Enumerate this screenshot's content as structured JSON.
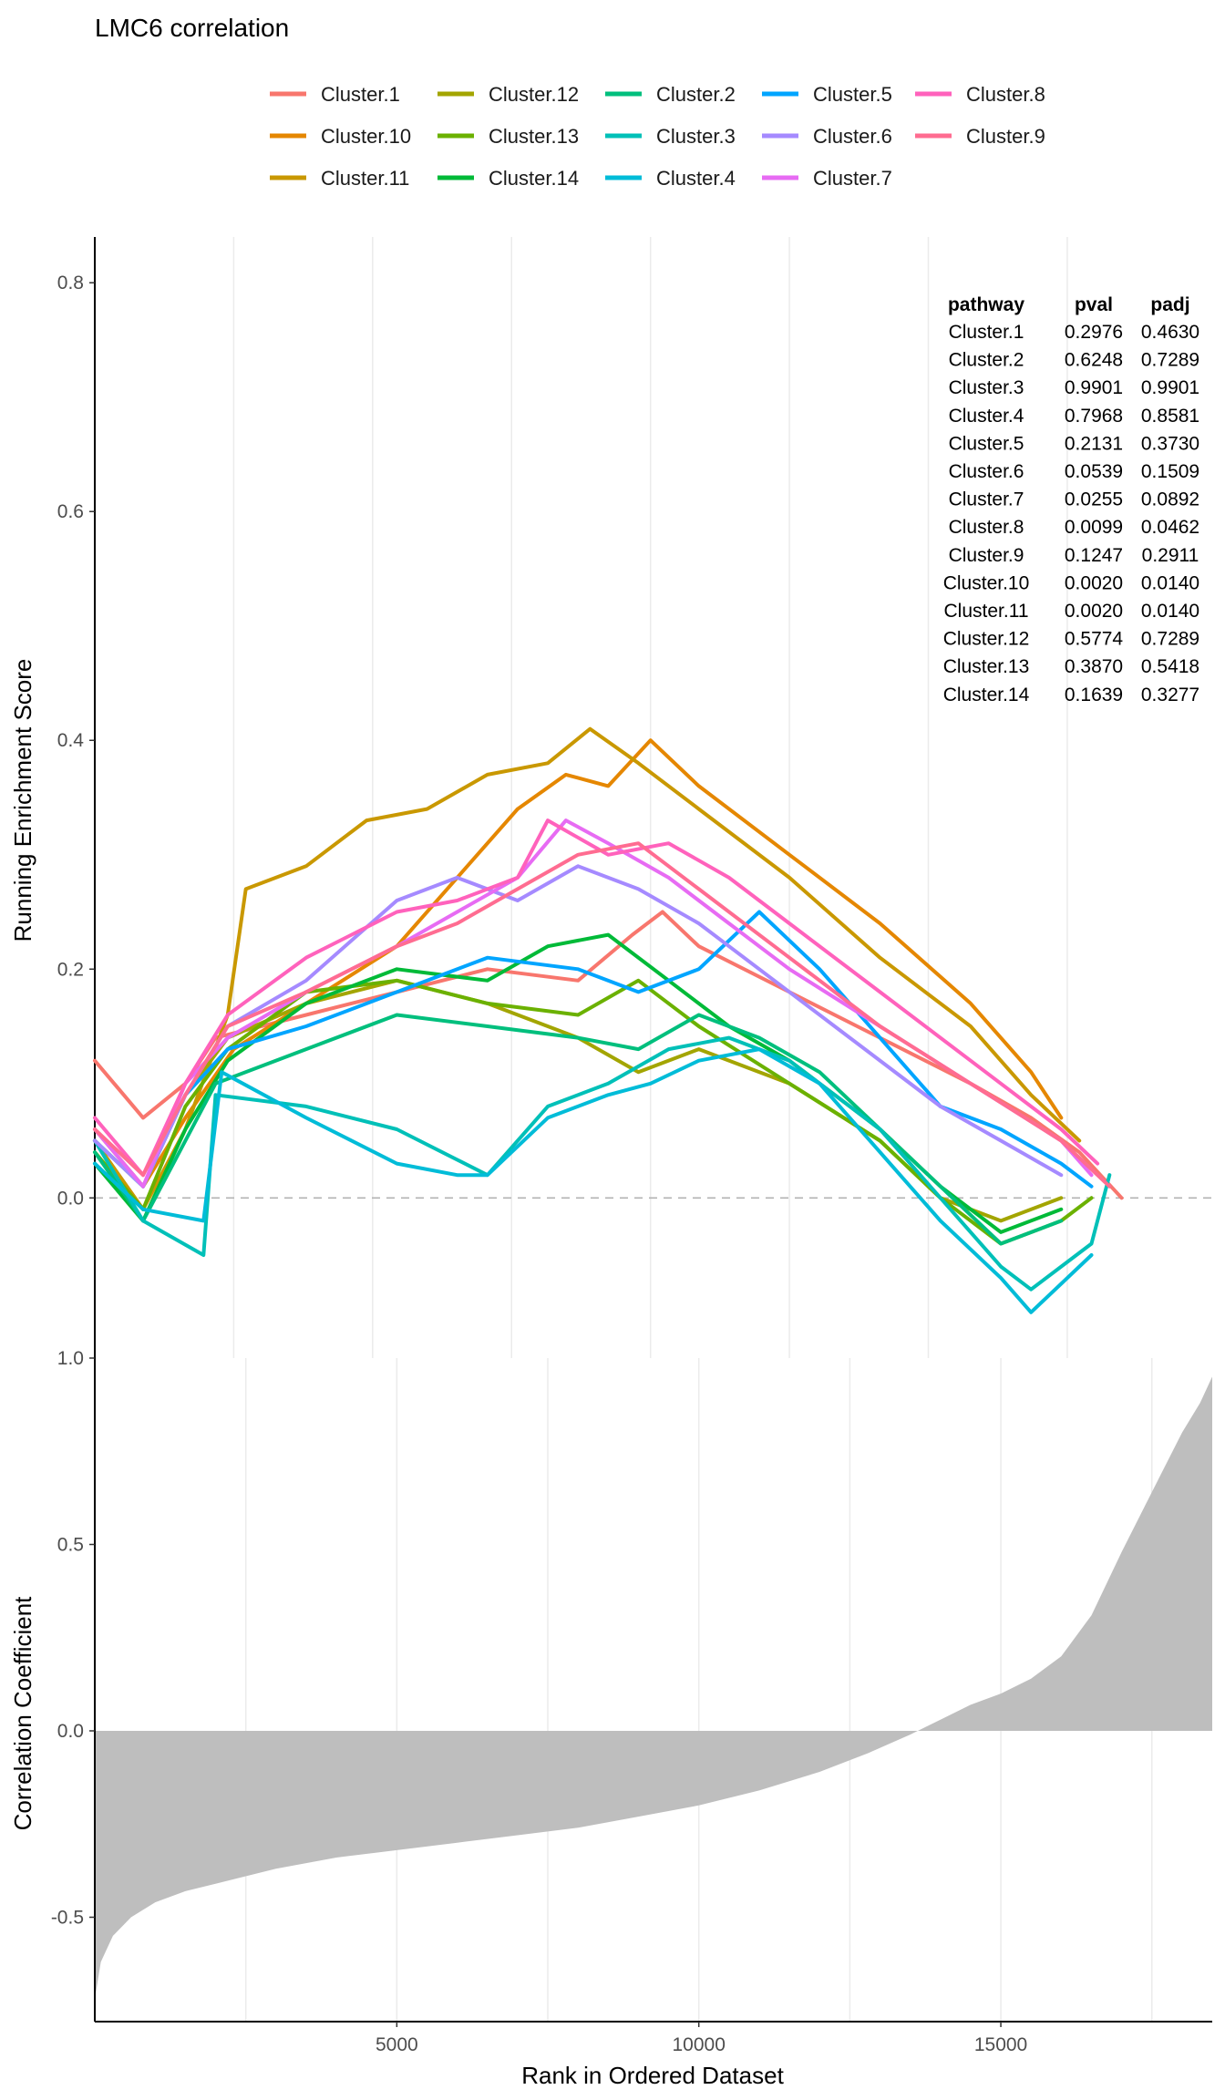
{
  "chart_data": [
    {
      "type": "line",
      "title": "LMC6  correlation",
      "ylabel": "Running Enrichment Score",
      "xlim": [
        0,
        18500
      ],
      "ylim": [
        -0.14,
        0.84
      ],
      "y_ticks": [
        0.0,
        0.2,
        0.4,
        0.6,
        0.8
      ],
      "y_tick_labels": [
        "0.0",
        "0.2",
        "0.4",
        "0.6",
        "0.8"
      ],
      "x_gridlines": [
        2300,
        4600,
        6900,
        9200,
        11500,
        13800,
        16100
      ],
      "zero_line": "dashed",
      "legend_position": "top",
      "series": [
        {
          "name": "Cluster.1",
          "color": "#F8766D",
          "x": [
            0,
            800,
            1500,
            2000,
            3500,
            5000,
            6500,
            8000,
            8900,
            9400,
            10000,
            11500,
            13000,
            14500,
            15500,
            16300,
            17000
          ],
          "y": [
            0.12,
            0.07,
            0.1,
            0.14,
            0.16,
            0.18,
            0.2,
            0.19,
            0.23,
            0.25,
            0.22,
            0.18,
            0.14,
            0.1,
            0.07,
            0.04,
            0.0
          ]
        },
        {
          "name": "Cluster.10",
          "color": "#E58700",
          "x": [
            0,
            800,
            1500,
            2300,
            3500,
            5000,
            6000,
            7000,
            7800,
            8500,
            9200,
            10000,
            11500,
            13000,
            14500,
            15500,
            16000
          ],
          "y": [
            0.06,
            0.01,
            0.07,
            0.13,
            0.17,
            0.22,
            0.28,
            0.34,
            0.37,
            0.36,
            0.4,
            0.36,
            0.3,
            0.24,
            0.17,
            0.11,
            0.07
          ]
        },
        {
          "name": "Cluster.11",
          "color": "#C99800",
          "x": [
            0,
            800,
            1500,
            2200,
            2500,
            3500,
            4500,
            5500,
            6500,
            7500,
            8200,
            9000,
            10000,
            11500,
            13000,
            14500,
            15500,
            16300
          ],
          "y": [
            0.05,
            -0.01,
            0.06,
            0.16,
            0.27,
            0.29,
            0.33,
            0.34,
            0.37,
            0.38,
            0.41,
            0.38,
            0.34,
            0.28,
            0.21,
            0.15,
            0.09,
            0.05
          ]
        },
        {
          "name": "Cluster.12",
          "color": "#A3A500",
          "x": [
            0,
            800,
            1500,
            2200,
            3500,
            5000,
            6500,
            8000,
            9000,
            10000,
            11500,
            13000,
            14000,
            15000,
            16000
          ],
          "y": [
            0.05,
            0.01,
            0.09,
            0.14,
            0.17,
            0.19,
            0.17,
            0.14,
            0.11,
            0.13,
            0.1,
            0.05,
            0.0,
            -0.02,
            0.0
          ]
        },
        {
          "name": "Cluster.13",
          "color": "#6BB100",
          "x": [
            0,
            800,
            1500,
            2200,
            3500,
            5000,
            6500,
            8000,
            9000,
            10000,
            11500,
            13000,
            14000,
            15000,
            16000,
            16500
          ],
          "y": [
            0.04,
            -0.01,
            0.08,
            0.13,
            0.18,
            0.19,
            0.17,
            0.16,
            0.19,
            0.15,
            0.1,
            0.05,
            0.0,
            -0.04,
            -0.02,
            0.0
          ]
        },
        {
          "name": "Cluster.14",
          "color": "#00BA38",
          "x": [
            0,
            800,
            1500,
            2200,
            3500,
            5000,
            6500,
            7500,
            8500,
            9500,
            10500,
            11500,
            13000,
            14000,
            15000,
            16000
          ],
          "y": [
            0.03,
            -0.02,
            0.06,
            0.12,
            0.17,
            0.2,
            0.19,
            0.22,
            0.23,
            0.19,
            0.15,
            0.12,
            0.06,
            0.01,
            -0.03,
            -0.01
          ]
        },
        {
          "name": "Cluster.2",
          "color": "#00BF7D",
          "x": [
            0,
            800,
            1500,
            2000,
            3500,
            5000,
            6500,
            8000,
            9000,
            10000,
            11000,
            12000,
            13000,
            14000,
            15000,
            16000
          ],
          "y": [
            0.04,
            -0.02,
            0.05,
            0.1,
            0.13,
            0.16,
            0.15,
            0.14,
            0.13,
            0.16,
            0.14,
            0.11,
            0.06,
            0.01,
            -0.04,
            -0.02
          ]
        },
        {
          "name": "Cluster.3",
          "color": "#00C0B8",
          "x": [
            0,
            800,
            1800,
            2000,
            3500,
            5000,
            6500,
            7500,
            8500,
            9500,
            10500,
            11500,
            13000,
            14000,
            15000,
            15500,
            16500,
            16800
          ],
          "y": [
            0.05,
            -0.02,
            -0.05,
            0.09,
            0.08,
            0.06,
            0.02,
            0.08,
            0.1,
            0.13,
            0.14,
            0.12,
            0.06,
            0.0,
            -0.06,
            -0.08,
            -0.04,
            0.02
          ]
        },
        {
          "name": "Cluster.4",
          "color": "#00BCD8",
          "x": [
            0,
            800,
            1800,
            2100,
            3500,
            5000,
            6000,
            6500,
            7500,
            8500,
            9200,
            10000,
            11000,
            12000,
            13000,
            14000,
            15000,
            15500,
            16500
          ],
          "y": [
            0.03,
            -0.01,
            -0.02,
            0.11,
            0.07,
            0.03,
            0.02,
            0.02,
            0.07,
            0.09,
            0.1,
            0.12,
            0.13,
            0.1,
            0.04,
            -0.02,
            -0.07,
            -0.1,
            -0.05
          ]
        },
        {
          "name": "Cluster.5",
          "color": "#00A5FF",
          "x": [
            0,
            800,
            1500,
            2200,
            3500,
            5000,
            6500,
            8000,
            9000,
            10000,
            11000,
            12000,
            13000,
            14000,
            15000,
            16000,
            16500
          ],
          "y": [
            0.05,
            0.01,
            0.09,
            0.13,
            0.15,
            0.18,
            0.21,
            0.2,
            0.18,
            0.2,
            0.25,
            0.2,
            0.14,
            0.08,
            0.06,
            0.03,
            0.01
          ]
        },
        {
          "name": "Cluster.6",
          "color": "#A58AFF",
          "x": [
            0,
            800,
            1500,
            2200,
            3500,
            5000,
            6000,
            7000,
            8000,
            9000,
            10000,
            11000,
            12500,
            14000,
            15000,
            16000
          ],
          "y": [
            0.05,
            0.01,
            0.09,
            0.15,
            0.19,
            0.26,
            0.28,
            0.26,
            0.29,
            0.27,
            0.24,
            0.2,
            0.14,
            0.08,
            0.05,
            0.02
          ]
        },
        {
          "name": "Cluster.7",
          "color": "#E76BF3",
          "x": [
            0,
            800,
            1500,
            2200,
            3500,
            5000,
            6000,
            7000,
            7800,
            8500,
            9500,
            10500,
            11500,
            13000,
            14500,
            16000,
            16500
          ],
          "y": [
            0.06,
            0.01,
            0.1,
            0.14,
            0.18,
            0.22,
            0.25,
            0.28,
            0.33,
            0.31,
            0.28,
            0.24,
            0.2,
            0.15,
            0.1,
            0.05,
            0.02
          ]
        },
        {
          "name": "Cluster.8",
          "color": "#FF62BC",
          "x": [
            0,
            800,
            1500,
            2200,
            3500,
            5000,
            6000,
            7000,
            7500,
            8500,
            9500,
            10500,
            11500,
            13000,
            14500,
            16000,
            16600
          ],
          "y": [
            0.07,
            0.02,
            0.1,
            0.16,
            0.21,
            0.25,
            0.26,
            0.28,
            0.33,
            0.3,
            0.31,
            0.28,
            0.24,
            0.18,
            0.12,
            0.06,
            0.03
          ]
        },
        {
          "name": "Cluster.9",
          "color": "#FF6C91",
          "x": [
            0,
            800,
            1500,
            2200,
            3500,
            5000,
            6000,
            7000,
            8000,
            9000,
            10000,
            11500,
            13000,
            14500,
            16000,
            16800
          ],
          "y": [
            0.06,
            0.02,
            0.09,
            0.15,
            0.18,
            0.22,
            0.24,
            0.27,
            0.3,
            0.31,
            0.27,
            0.21,
            0.15,
            0.1,
            0.05,
            0.01
          ]
        }
      ]
    },
    {
      "type": "area",
      "ylabel": "Correlation Coefficient",
      "xlabel": "Rank in Ordered Dataset",
      "xlim": [
        0,
        18500
      ],
      "ylim": [
        -0.78,
        1.0
      ],
      "x_ticks": [
        5000,
        10000,
        15000
      ],
      "x_tick_labels": [
        "5000",
        "10000",
        "15000"
      ],
      "x_gridlines": [
        2500,
        5000,
        7500,
        10000,
        12500,
        15000,
        17500
      ],
      "y_ticks": [
        -0.5,
        0.0,
        0.5,
        1.0
      ],
      "y_tick_labels": [
        "-0.5",
        "0.0",
        "0.5",
        "1.0"
      ],
      "fill_color": "#BEBEBE",
      "x": [
        0,
        100,
        300,
        600,
        1000,
        1500,
        2000,
        3000,
        4000,
        5000,
        6000,
        7000,
        8000,
        9000,
        10000,
        11000,
        12000,
        12800,
        13500,
        14000,
        14500,
        15000,
        15500,
        16000,
        16500,
        17000,
        17500,
        18000,
        18300,
        18500
      ],
      "y": [
        -0.72,
        -0.62,
        -0.55,
        -0.5,
        -0.46,
        -0.43,
        -0.41,
        -0.37,
        -0.34,
        -0.32,
        -0.3,
        -0.28,
        -0.26,
        -0.23,
        -0.2,
        -0.16,
        -0.11,
        -0.06,
        -0.01,
        0.03,
        0.07,
        0.1,
        0.14,
        0.2,
        0.31,
        0.48,
        0.64,
        0.8,
        0.88,
        0.95
      ]
    }
  ],
  "stats_table": {
    "headers": [
      "pathway",
      "pval",
      "padj"
    ],
    "rows": [
      [
        "Cluster.1",
        "0.2976",
        "0.4630"
      ],
      [
        "Cluster.2",
        "0.6248",
        "0.7289"
      ],
      [
        "Cluster.3",
        "0.9901",
        "0.9901"
      ],
      [
        "Cluster.4",
        "0.7968",
        "0.8581"
      ],
      [
        "Cluster.5",
        "0.2131",
        "0.3730"
      ],
      [
        "Cluster.6",
        "0.0539",
        "0.1509"
      ],
      [
        "Cluster.7",
        "0.0255",
        "0.0892"
      ],
      [
        "Cluster.8",
        "0.0099",
        "0.0462"
      ],
      [
        "Cluster.9",
        "0.1247",
        "0.2911"
      ],
      [
        "Cluster.10",
        "0.0020",
        "0.0140"
      ],
      [
        "Cluster.11",
        "0.0020",
        "0.0140"
      ],
      [
        "Cluster.12",
        "0.5774",
        "0.7289"
      ],
      [
        "Cluster.13",
        "0.3870",
        "0.5418"
      ],
      [
        "Cluster.14",
        "0.1639",
        "0.3277"
      ]
    ]
  }
}
